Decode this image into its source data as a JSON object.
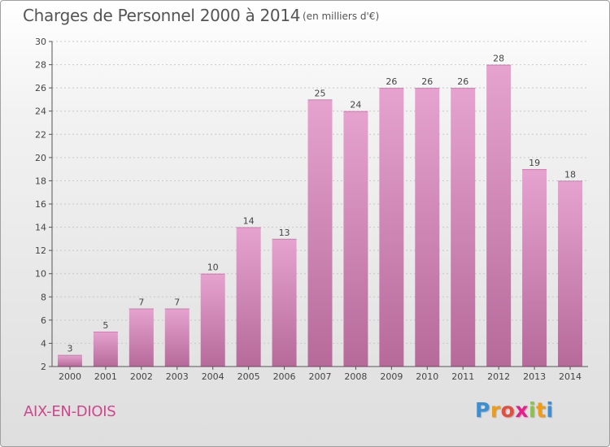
{
  "header": {
    "title": "Charges de Personnel 2000 à 2014",
    "subtitle": "(en milliers d'€)"
  },
  "footer": {
    "town": "AIX-EN-DIOIS",
    "logo": {
      "letters": [
        {
          "char": "P",
          "color": "#3b8fd4"
        },
        {
          "char": "r",
          "color": "#f39c12"
        },
        {
          "char": "o",
          "color": "#e74c3c"
        },
        {
          "char": "x",
          "color": "#e91e8c"
        },
        {
          "char": "i",
          "color": "#8bc34a"
        },
        {
          "char": "t",
          "color": "#f39c12"
        },
        {
          "char": "i",
          "color": "#3b8fd4"
        }
      ]
    }
  },
  "chart_data": {
    "type": "bar",
    "categories": [
      "2000",
      "2001",
      "2002",
      "2003",
      "2004",
      "2005",
      "2006",
      "2007",
      "2008",
      "2009",
      "2010",
      "2011",
      "2012",
      "2013",
      "2014"
    ],
    "values": [
      3,
      5,
      7,
      7,
      10,
      14,
      13,
      25,
      24,
      26,
      26,
      26,
      28,
      19,
      18
    ],
    "data_labels": [
      "3",
      "5",
      "7",
      "7",
      "10",
      "14",
      "13",
      "25",
      "24",
      "26",
      "26",
      "26",
      "28",
      "19",
      "18"
    ],
    "title": "Charges de Personnel 2000 à 2014",
    "ylim": [
      2,
      30
    ],
    "yticks": [
      2,
      4,
      6,
      8,
      10,
      12,
      14,
      16,
      18,
      20,
      22,
      24,
      26,
      28,
      30
    ],
    "grid": true,
    "bar_color_top": "#e6a3cf",
    "bar_color_bottom": "#b66a9a"
  }
}
